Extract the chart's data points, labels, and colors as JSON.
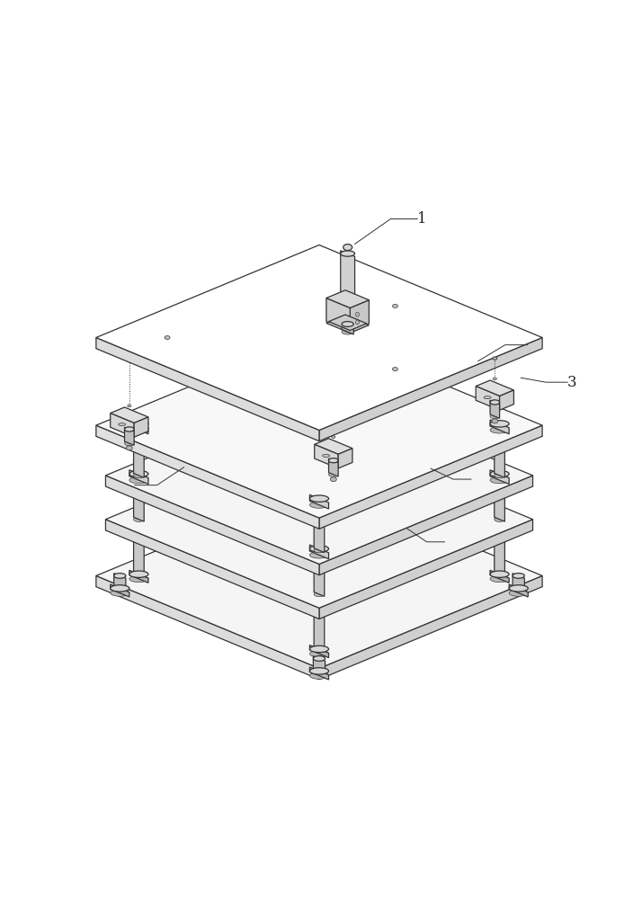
{
  "bg_color": "#ffffff",
  "line_color": "#333333",
  "lw": 0.9,
  "fig_width": 7.04,
  "fig_height": 10.0,
  "label_color": "#222222",
  "label_fontsize": 12
}
